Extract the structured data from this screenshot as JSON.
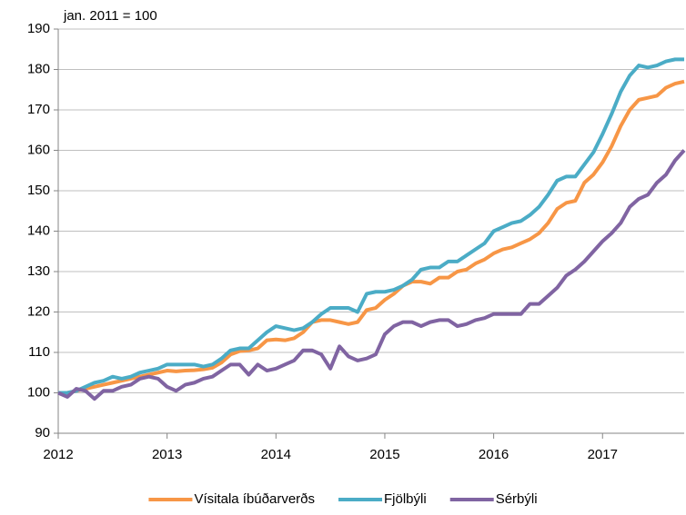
{
  "chart_data": {
    "type": "line",
    "subtitle": "jan. 2011 = 100",
    "categories": [
      "2012",
      null,
      null,
      null,
      null,
      null,
      null,
      null,
      null,
      null,
      null,
      null,
      "2013",
      null,
      null,
      null,
      null,
      null,
      null,
      null,
      null,
      null,
      null,
      null,
      "2014",
      null,
      null,
      null,
      null,
      null,
      null,
      null,
      null,
      null,
      null,
      null,
      "2015",
      null,
      null,
      null,
      null,
      null,
      null,
      null,
      null,
      null,
      null,
      null,
      "2016",
      null,
      null,
      null,
      null,
      null,
      null,
      null,
      null,
      null,
      null,
      null,
      "2017",
      null,
      null,
      null,
      null,
      null,
      null,
      null,
      null,
      null
    ],
    "series": [
      {
        "name": "Vísitala íbúðarverðs",
        "color": "#f79646",
        "values": [
          100,
          100,
          100.5,
          101,
          101.5,
          102,
          102.5,
          103,
          103.5,
          104,
          104.5,
          105,
          105.5,
          105.3,
          105.5,
          105.6,
          105.8,
          106.2,
          107.5,
          109.5,
          110.3,
          110.5,
          111,
          113,
          113.2,
          113,
          113.5,
          115,
          117.5,
          118,
          118,
          117.5,
          117,
          117.5,
          120.5,
          121,
          123,
          124.5,
          126.5,
          127.5,
          127.5,
          127,
          128.5,
          128.5,
          130,
          130.5,
          132,
          133,
          134.5,
          135.5,
          136,
          137,
          138,
          139.5,
          142,
          145.5,
          147,
          147.5,
          152,
          154,
          157,
          161,
          166,
          170,
          172.5,
          173,
          173.5,
          175.5,
          176.5,
          177
        ]
      },
      {
        "name": "Fjölbýli",
        "color": "#4bacc6",
        "values": [
          100,
          100,
          100.5,
          101.5,
          102.5,
          103,
          104,
          103.5,
          104,
          105,
          105.5,
          106,
          107,
          107,
          107,
          107,
          106.5,
          107,
          108.5,
          110.5,
          111,
          111,
          113,
          115,
          116.5,
          116,
          115.5,
          116,
          117.5,
          119.5,
          121,
          121,
          121,
          120,
          124.5,
          125,
          125,
          125.5,
          126.5,
          128,
          130.5,
          131,
          131,
          132.5,
          132.5,
          134,
          135.5,
          137,
          140,
          141,
          142,
          142.5,
          144,
          146,
          149,
          152.5,
          153.5,
          153.5,
          156.5,
          159.5,
          164,
          169,
          174.5,
          178.5,
          181,
          180.5,
          181,
          182,
          182.5,
          182.5
        ]
      },
      {
        "name": "Sérbýli",
        "color": "#8064a2",
        "values": [
          100,
          99,
          101,
          100.5,
          98.5,
          100.5,
          100.5,
          101.5,
          102,
          103.5,
          104,
          103.5,
          101.5,
          100.5,
          102,
          102.5,
          103.5,
          104,
          105.5,
          107,
          107,
          104.5,
          107,
          105.5,
          106,
          107,
          108,
          110.5,
          110.5,
          109.5,
          106,
          111.5,
          109,
          108,
          108.5,
          109.5,
          114.5,
          116.5,
          117.5,
          117.5,
          116.5,
          117.5,
          118,
          118,
          116.5,
          117,
          118,
          118.5,
          119.5,
          119.5,
          119.5,
          119.5,
          122,
          122,
          124,
          126,
          129,
          130.5,
          132.5,
          135,
          137.5,
          139.5,
          142,
          146,
          148,
          149,
          152,
          154,
          157.5,
          160
        ]
      }
    ],
    "ylim": [
      90,
      190
    ],
    "yticks": [
      90,
      100,
      110,
      120,
      130,
      140,
      150,
      160,
      170,
      180,
      190
    ],
    "grid": true
  }
}
